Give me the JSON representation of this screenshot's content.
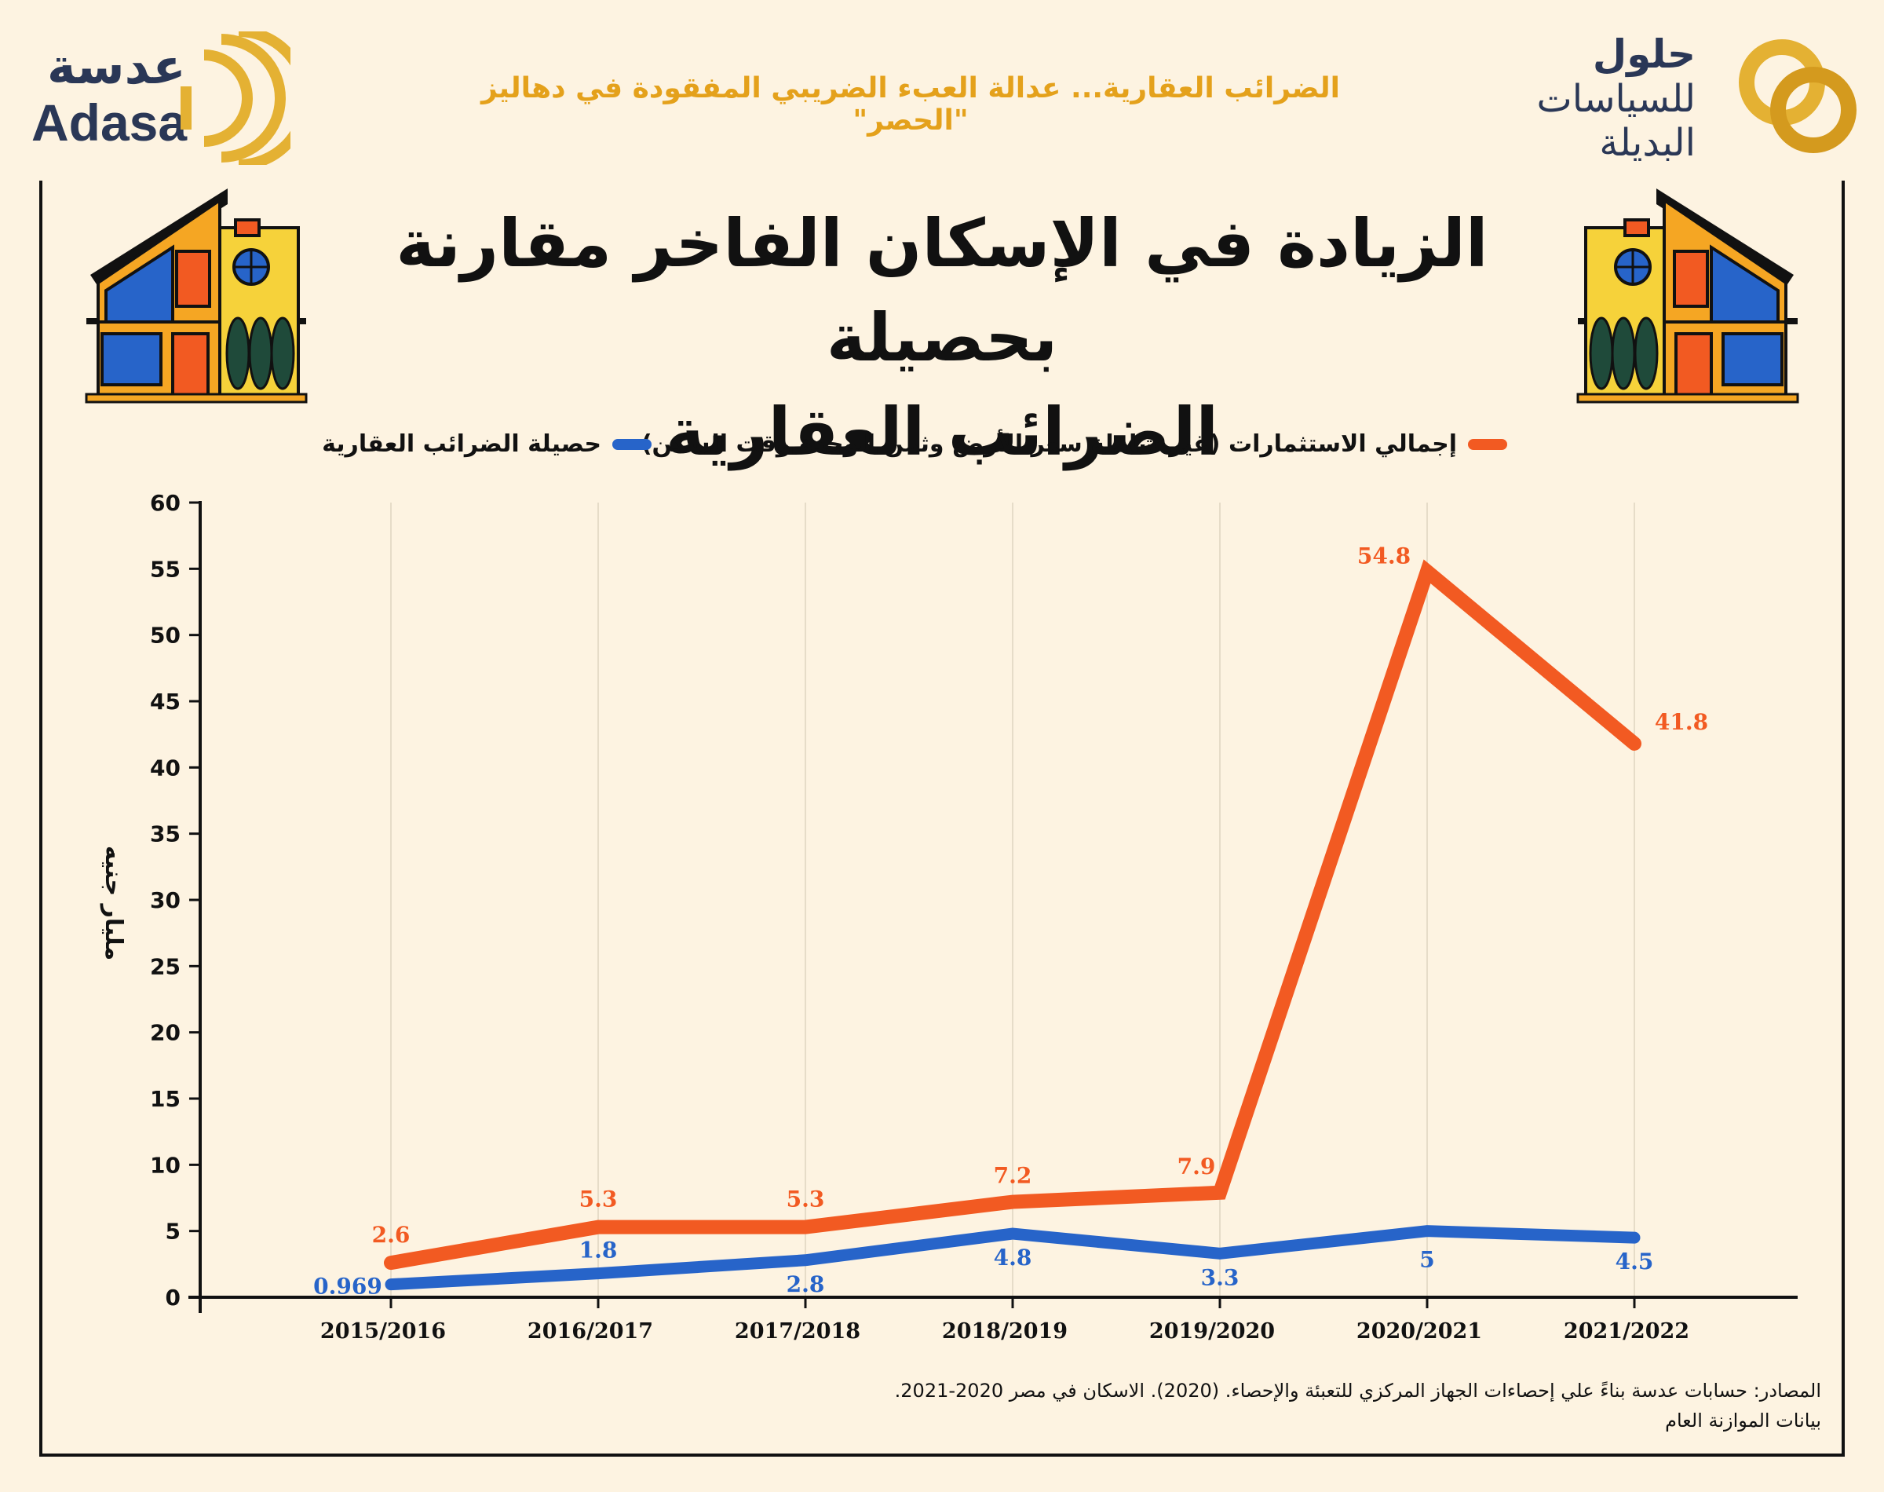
{
  "header": {
    "subtitle": "الضرائب العقارية... عدالة العبء الضريبي المفقودة في دهاليز \"الحصر\"",
    "logo_left_ar": "عدسة",
    "logo_left_en": "Adasa",
    "logo_right_line1": "حلول",
    "logo_right_line2": "للسياسات",
    "logo_right_line3": "البديلة"
  },
  "title_line1": "الزيادة في الإسكان الفاخر مقارنة بحصيلة",
  "title_line2": "الضرائب العقارية",
  "colors": {
    "investments": "#f25a22",
    "taxes": "#2764c9",
    "accent": "#e4a11b",
    "navy": "#2a3756",
    "background": "#fdf3e1"
  },
  "chart_data": {
    "type": "line",
    "categories": [
      "2015/2016",
      "2016/2017",
      "2017/2018",
      "2018/2019",
      "2019/2020",
      "2020/2021",
      "2021/2022"
    ],
    "series": [
      {
        "name": "إجمالي الاستثمارات (غير شاملة سعر الأرض وثمن الوحدة وقت السكن)",
        "values": [
          2.6,
          5.3,
          5.3,
          7.2,
          7.9,
          54.8,
          41.8
        ],
        "labels": [
          "2.6",
          "5.3",
          "5.3",
          "7.2",
          "7.9",
          "54.8",
          "41.8"
        ]
      },
      {
        "name": "حصيلة الضرائب العقارية",
        "values": [
          0.969,
          1.8,
          2.8,
          4.8,
          3.3,
          5,
          4.5
        ],
        "labels": [
          "0.969",
          "1.8",
          "2.8",
          "4.8",
          "3.3",
          "5",
          "4.5"
        ]
      }
    ],
    "ylabel": "مليار جنيه",
    "ylim": [
      0,
      60
    ],
    "yticks": [
      0,
      5,
      10,
      15,
      20,
      25,
      30,
      35,
      40,
      45,
      50,
      55,
      60
    ],
    "grid": "vertical",
    "legend": "top"
  },
  "source": {
    "line1": "المصادر: حسابات عدسة بناءً علي إحصاءات الجهاز المركزي للتعبئة والإحصاء. (2020). الاسكان في مصر 2020-2021.",
    "line2": "بيانات الموازنة العام"
  }
}
